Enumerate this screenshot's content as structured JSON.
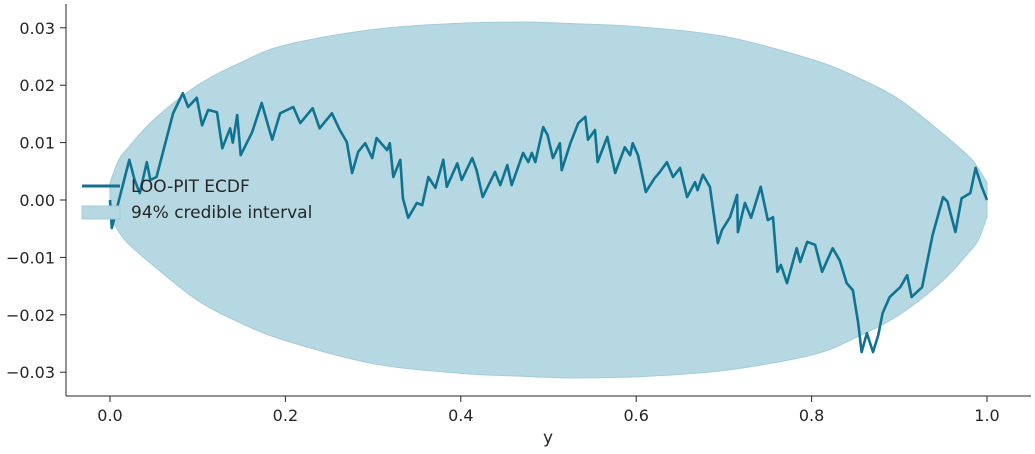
{
  "chart_data": {
    "type": "line",
    "title": "",
    "xlabel": "y",
    "ylabel": "",
    "xlim": [
      -0.05,
      1.05
    ],
    "ylim": [
      -0.0341,
      0.0341
    ],
    "grid": false,
    "legend_position": "center-left",
    "x_ticks": [
      "0.0",
      "0.2",
      "0.4",
      "0.6",
      "0.8",
      "1.0"
    ],
    "x_tick_values": [
      0,
      0.2,
      0.4,
      0.6,
      0.8,
      1.0
    ],
    "y_ticks": [
      "0.03",
      "0.02",
      "0.01",
      "0.00",
      "−0.01",
      "−0.02",
      "−0.03"
    ],
    "y_tick_values": [
      0.03,
      0.02,
      0.01,
      0,
      -0.01,
      -0.02,
      -0.03
    ],
    "colors": {
      "line": "#0f7391",
      "band": "#b6d8e2",
      "band_edge": "#a3ccd9"
    },
    "legend": [
      {
        "label": "LOO-PIT ECDF",
        "kind": "line"
      },
      {
        "label": "94% credible interval",
        "kind": "band"
      }
    ],
    "band": {
      "name": "94% credible interval",
      "x": [
        0,
        0.01,
        0.02,
        0.05,
        0.1,
        0.15,
        0.2,
        0.3,
        0.4,
        0.47,
        0.5,
        0.53,
        0.6,
        0.7,
        0.8,
        0.85,
        0.9,
        0.95,
        0.98,
        0.99,
        1.0
      ],
      "upper": [
        0.003,
        0.007,
        0.009,
        0.014,
        0.02,
        0.024,
        0.027,
        0.0297,
        0.0308,
        0.031,
        0.0309,
        0.0307,
        0.0302,
        0.0285,
        0.0245,
        0.0215,
        0.0175,
        0.0115,
        0.0075,
        0.0055,
        0.003
      ],
      "lower": [
        -0.003,
        -0.0055,
        -0.0075,
        -0.0115,
        -0.0175,
        -0.0215,
        -0.0245,
        -0.0285,
        -0.0302,
        -0.0307,
        -0.0309,
        -0.031,
        -0.0308,
        -0.0297,
        -0.027,
        -0.024,
        -0.02,
        -0.014,
        -0.009,
        -0.007,
        -0.003
      ]
    },
    "series": [
      {
        "name": "LOO-PIT ECDF",
        "x": [
          0,
          0.002,
          0.022,
          0.028,
          0.034,
          0.042,
          0.046,
          0.053,
          0.072,
          0.083,
          0.089,
          0.099,
          0.105,
          0.112,
          0.122,
          0.128,
          0.137,
          0.14,
          0.145,
          0.149,
          0.162,
          0.173,
          0.185,
          0.194,
          0.209,
          0.217,
          0.231,
          0.239,
          0.253,
          0.262,
          0.27,
          0.276,
          0.283,
          0.291,
          0.299,
          0.304,
          0.316,
          0.319,
          0.323,
          0.331,
          0.334,
          0.34,
          0.35,
          0.356,
          0.363,
          0.371,
          0.38,
          0.384,
          0.396,
          0.401,
          0.413,
          0.418,
          0.425,
          0.439,
          0.445,
          0.453,
          0.458,
          0.471,
          0.477,
          0.481,
          0.485,
          0.494,
          0.499,
          0.505,
          0.513,
          0.515,
          0.525,
          0.534,
          0.542,
          0.545,
          0.553,
          0.556,
          0.567,
          0.576,
          0.587,
          0.593,
          0.596,
          0.602,
          0.611,
          0.621,
          0.627,
          0.635,
          0.642,
          0.65,
          0.658,
          0.667,
          0.67,
          0.676,
          0.684,
          0.693,
          0.698,
          0.707,
          0.715,
          0.716,
          0.724,
          0.731,
          0.742,
          0.75,
          0.756,
          0.761,
          0.765,
          0.772,
          0.783,
          0.787,
          0.795,
          0.804,
          0.812,
          0.824,
          0.832,
          0.84,
          0.847,
          0.853,
          0.857,
          0.863,
          0.87,
          0.876,
          0.881,
          0.889,
          0.901,
          0.909,
          0.914,
          0.926,
          0.938,
          0.95,
          0.955,
          0.964,
          0.971,
          0.981,
          0.987,
          0.994,
          1.0
        ],
        "y": [
          0,
          -0.0049,
          0.007,
          0.0035,
          0.0012,
          0.0066,
          0.0035,
          0.004,
          0.0151,
          0.0186,
          0.0162,
          0.0178,
          0.013,
          0.0157,
          0.0153,
          0.009,
          0.0125,
          0.01,
          0.0148,
          0.0078,
          0.0118,
          0.0169,
          0.0105,
          0.0151,
          0.0162,
          0.0134,
          0.016,
          0.0125,
          0.0151,
          0.0122,
          0.0101,
          0.0047,
          0.0084,
          0.0099,
          0.0073,
          0.0108,
          0.0087,
          0.0099,
          0.004,
          0.007,
          0.0003,
          -0.0031,
          -0.0005,
          -0.0009,
          0.004,
          0.0021,
          0.007,
          0.0023,
          0.0064,
          0.0035,
          0.0073,
          0.0052,
          0.0005,
          0.0049,
          0.0026,
          0.0061,
          0.0026,
          0.0082,
          0.0066,
          0.0082,
          0.0066,
          0.0127,
          0.0113,
          0.0073,
          0.0099,
          0.0052,
          0.0099,
          0.0134,
          0.0145,
          0.0105,
          0.0122,
          0.0066,
          0.011,
          0.0047,
          0.0092,
          0.0078,
          0.0099,
          0.0078,
          0.0014,
          0.0038,
          0.0049,
          0.0066,
          0.004,
          0.0056,
          0.0005,
          0.0031,
          0.0017,
          0.0044,
          0.0023,
          -0.0075,
          -0.0052,
          -0.003,
          0.0009,
          -0.0056,
          -0.0005,
          -0.0031,
          0.0023,
          -0.0035,
          -0.003,
          -0.0125,
          -0.0113,
          -0.0145,
          -0.0084,
          -0.0108,
          -0.0073,
          -0.0078,
          -0.0125,
          -0.0084,
          -0.0105,
          -0.0145,
          -0.0157,
          -0.0213,
          -0.0265,
          -0.0232,
          -0.0265,
          -0.0235,
          -0.0197,
          -0.0169,
          -0.0152,
          -0.0131,
          -0.0169,
          -0.0152,
          -0.0061,
          0.0005,
          -0.0003,
          -0.0056,
          0.0003,
          0.0012,
          0.0056,
          0.0023,
          0.0
        ]
      }
    ]
  }
}
